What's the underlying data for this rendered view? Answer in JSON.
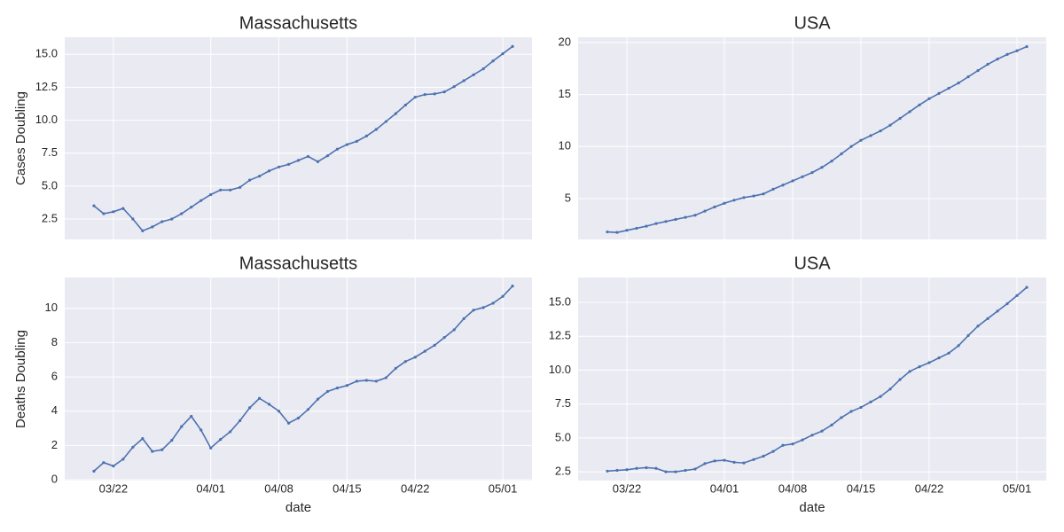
{
  "chart_data": [
    {
      "type": "line",
      "title": "Massachusetts",
      "ylabel": "Cases Doubling",
      "color": "#4c72b0",
      "x": [
        "03/20",
        "03/21",
        "03/22",
        "03/23",
        "03/24",
        "03/25",
        "03/26",
        "03/27",
        "03/28",
        "03/29",
        "03/30",
        "03/31",
        "04/01",
        "04/02",
        "04/03",
        "04/04",
        "04/05",
        "04/06",
        "04/07",
        "04/08",
        "04/09",
        "04/10",
        "04/11",
        "04/12",
        "04/13",
        "04/14",
        "04/15",
        "04/16",
        "04/17",
        "04/18",
        "04/19",
        "04/20",
        "04/21",
        "04/22",
        "04/23",
        "04/24",
        "04/25",
        "04/26",
        "04/27",
        "04/28",
        "04/29",
        "04/30",
        "05/01",
        "05/02"
      ],
      "values": [
        3.5,
        2.9,
        3.05,
        3.3,
        2.5,
        1.6,
        1.9,
        2.3,
        2.5,
        2.9,
        3.4,
        3.9,
        4.35,
        4.7,
        4.7,
        4.9,
        5.45,
        5.75,
        6.15,
        6.45,
        6.65,
        6.95,
        7.25,
        6.85,
        7.3,
        7.8,
        8.15,
        8.4,
        8.8,
        9.3,
        9.9,
        10.5,
        11.15,
        11.75,
        11.95,
        12.0,
        12.15,
        12.55,
        13.0,
        13.45,
        13.9,
        14.5,
        15.05,
        15.6
      ],
      "xlim": [
        "03/17",
        "05/04"
      ],
      "xticks": [
        "03/22",
        "04/01",
        "04/08",
        "04/15",
        "04/22",
        "05/01"
      ],
      "ylim": [
        0.95,
        16.3
      ],
      "yticks": [
        2.5,
        {
          "value": 5,
          "label": "5.0"
        },
        {
          "value": 7.5,
          "label": "7.5"
        },
        {
          "value": 10,
          "label": "10.0"
        },
        {
          "value": 12.5,
          "label": "12.5"
        },
        {
          "value": 15,
          "label": "15.0"
        }
      ],
      "grid": true
    },
    {
      "type": "line",
      "title": "USA",
      "color": "#4c72b0",
      "x": [
        "03/20",
        "03/21",
        "03/22",
        "03/23",
        "03/24",
        "03/25",
        "03/26",
        "03/27",
        "03/28",
        "03/29",
        "03/30",
        "03/31",
        "04/01",
        "04/02",
        "04/03",
        "04/04",
        "04/05",
        "04/06",
        "04/07",
        "04/08",
        "04/09",
        "04/10",
        "04/11",
        "04/12",
        "04/13",
        "04/14",
        "04/15",
        "04/16",
        "04/17",
        "04/18",
        "04/19",
        "04/20",
        "04/21",
        "04/22",
        "04/23",
        "04/24",
        "04/25",
        "04/26",
        "04/27",
        "04/28",
        "04/29",
        "04/30",
        "05/01",
        "05/02"
      ],
      "values": [
        1.8,
        1.75,
        1.95,
        2.15,
        2.35,
        2.6,
        2.8,
        3.0,
        3.2,
        3.4,
        3.8,
        4.2,
        4.55,
        4.85,
        5.1,
        5.25,
        5.45,
        5.9,
        6.3,
        6.7,
        7.1,
        7.5,
        8.0,
        8.6,
        9.3,
        10.0,
        10.6,
        11.05,
        11.5,
        12.05,
        12.7,
        13.35,
        14.0,
        14.6,
        15.1,
        15.6,
        16.1,
        16.7,
        17.3,
        17.9,
        18.4,
        18.85,
        19.2,
        19.6
      ],
      "xlim": [
        "03/17",
        "05/04"
      ],
      "xticks": [
        "03/22",
        "04/01",
        "04/08",
        "04/15",
        "04/22",
        "05/01"
      ],
      "ylim": [
        1.08,
        20.5
      ],
      "yticks": [
        5,
        10,
        15,
        20
      ],
      "grid": true
    },
    {
      "type": "line",
      "title": "Massachusetts",
      "ylabel": "Deaths Doubling",
      "xlabel": "date",
      "color": "#4c72b0",
      "x": [
        "03/20",
        "03/21",
        "03/22",
        "03/23",
        "03/24",
        "03/25",
        "03/26",
        "03/27",
        "03/28",
        "03/29",
        "03/30",
        "03/31",
        "04/01",
        "04/02",
        "04/03",
        "04/04",
        "04/05",
        "04/06",
        "04/07",
        "04/08",
        "04/09",
        "04/10",
        "04/11",
        "04/12",
        "04/13",
        "04/14",
        "04/15",
        "04/16",
        "04/17",
        "04/18",
        "04/19",
        "04/20",
        "04/21",
        "04/22",
        "04/23",
        "04/24",
        "04/25",
        "04/26",
        "04/27",
        "04/28",
        "04/29",
        "04/30",
        "05/01",
        "05/02"
      ],
      "values": [
        0.5,
        1.0,
        0.8,
        1.2,
        1.9,
        2.4,
        1.65,
        1.75,
        2.3,
        3.1,
        3.7,
        2.9,
        1.85,
        2.35,
        2.8,
        3.45,
        4.2,
        4.75,
        4.4,
        4.0,
        3.3,
        3.6,
        4.1,
        4.7,
        5.15,
        5.35,
        5.5,
        5.75,
        5.8,
        5.75,
        5.95,
        6.5,
        6.9,
        7.15,
        7.5,
        7.85,
        8.3,
        8.75,
        9.4,
        9.9,
        10.05,
        10.3,
        10.7,
        11.3
      ],
      "xlim": [
        "03/17",
        "05/04"
      ],
      "xticks": [
        "03/22",
        "04/01",
        "04/08",
        "04/15",
        "04/22",
        "05/01"
      ],
      "ylim": [
        -0.05,
        11.8
      ],
      "yticks": [
        0,
        2,
        4,
        6,
        8,
        10
      ],
      "grid": true
    },
    {
      "type": "line",
      "title": "USA",
      "xlabel": "date",
      "color": "#4c72b0",
      "x": [
        "03/20",
        "03/21",
        "03/22",
        "03/23",
        "03/24",
        "03/25",
        "03/26",
        "03/27",
        "03/28",
        "03/29",
        "03/30",
        "03/31",
        "04/01",
        "04/02",
        "04/03",
        "04/04",
        "04/05",
        "04/06",
        "04/07",
        "04/08",
        "04/09",
        "04/10",
        "04/11",
        "04/12",
        "04/13",
        "04/14",
        "04/15",
        "04/16",
        "04/17",
        "04/18",
        "04/19",
        "04/20",
        "04/21",
        "04/22",
        "04/23",
        "04/24",
        "04/25",
        "04/26",
        "04/27",
        "04/28",
        "04/29",
        "04/30",
        "05/01",
        "05/02"
      ],
      "values": [
        2.55,
        2.6,
        2.65,
        2.75,
        2.8,
        2.75,
        2.5,
        2.5,
        2.6,
        2.7,
        3.1,
        3.3,
        3.35,
        3.2,
        3.15,
        3.4,
        3.65,
        4.0,
        4.45,
        4.55,
        4.85,
        5.2,
        5.5,
        5.95,
        6.5,
        6.95,
        7.25,
        7.65,
        8.05,
        8.6,
        9.3,
        9.9,
        10.25,
        10.55,
        10.9,
        11.25,
        11.8,
        12.55,
        13.25,
        13.8,
        14.35,
        14.9,
        15.5,
        16.1
      ],
      "xlim": [
        "03/17",
        "05/04"
      ],
      "xticks": [
        "03/22",
        "04/01",
        "04/08",
        "04/15",
        "04/22",
        "05/01"
      ],
      "ylim": [
        1.85,
        16.83
      ],
      "yticks": [
        2.5,
        {
          "value": 5,
          "label": "5.0"
        },
        {
          "value": 7.5,
          "label": "7.5"
        },
        {
          "value": 10,
          "label": "10.0"
        },
        {
          "value": 12.5,
          "label": "12.5"
        },
        {
          "value": 15,
          "label": "15.0"
        }
      ],
      "grid": true
    }
  ]
}
